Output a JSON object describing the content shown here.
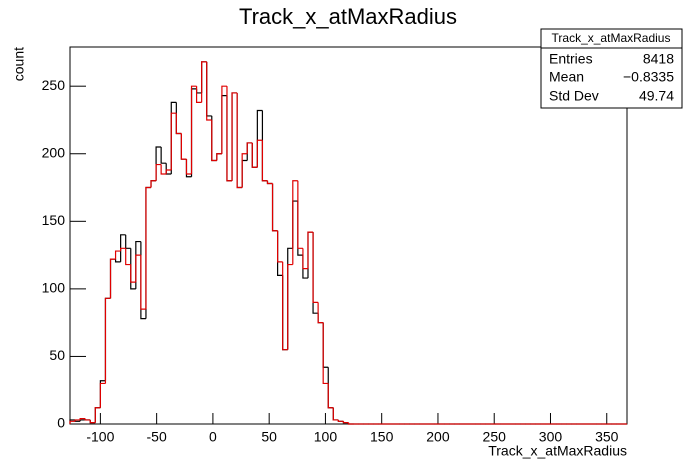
{
  "chart_data": {
    "type": "histogram",
    "title": "Track_x_atMaxRadius",
    "x_label": "Track_x_atMaxRadius",
    "y_label": "count",
    "bins": [
      -127,
      -122.5,
      -118,
      -113.5,
      -109,
      -104.5,
      -100,
      -95.5,
      -91,
      -86.5,
      -82,
      -77.5,
      -73,
      -68.5,
      -64,
      -59.5,
      -55,
      -50.5,
      -46,
      -41.5,
      -37,
      -32.5,
      -28,
      -23.5,
      -19,
      -14.5,
      -10,
      -5.5,
      -1,
      3.5,
      8,
      12.5,
      17,
      21.5,
      26,
      30.5,
      35,
      39.5,
      44,
      48.5,
      53,
      57.5,
      62,
      66.5,
      71,
      75.5,
      80,
      84.5,
      89,
      93.5,
      98,
      102.5,
      107,
      111.5,
      116,
      120.5,
      125,
      129.5,
      134,
      138.5,
      143,
      147.5,
      152,
      156.5,
      161,
      165.5,
      170,
      174.5,
      179,
      183.5,
      188,
      192.5,
      197,
      201.5,
      206,
      210.5,
      215,
      219.5,
      224,
      228.5,
      233,
      237.5,
      242,
      246.5,
      251,
      255.5,
      260,
      264.5,
      269,
      273.5,
      278,
      282.5,
      287,
      291.5,
      296,
      300.5,
      305,
      309.5,
      314,
      318.5,
      323,
      327.5,
      332,
      336.5,
      341,
      345.5,
      350,
      354.5,
      359,
      363.5,
      368
    ],
    "series": [
      {
        "color": "#000000",
        "values": [
          3,
          2,
          3,
          3,
          1,
          12,
          32,
          93,
          122,
          120,
          140,
          130,
          100,
          135,
          78,
          175,
          180,
          205,
          193,
          185,
          238,
          215,
          196,
          183,
          248,
          245,
          268,
          228,
          195,
          200,
          243,
          180,
          245,
          175,
          195,
          208,
          190,
          232,
          180,
          178,
          143,
          110,
          55,
          130,
          165,
          125,
          108,
          142,
          82,
          75,
          42,
          12,
          3,
          2,
          1,
          0,
          0,
          0,
          0,
          0,
          0,
          0,
          0,
          0,
          0,
          0,
          0,
          0,
          0,
          0,
          0,
          0,
          0,
          0,
          0,
          0,
          0,
          0,
          0,
          0,
          0,
          0,
          0,
          0,
          0,
          0,
          0,
          0,
          0,
          0,
          0,
          0,
          0,
          0,
          0,
          0,
          0,
          0,
          0,
          0,
          0,
          0,
          0,
          0,
          0,
          0,
          0,
          0,
          0,
          0
        ]
      },
      {
        "color": "#e00000",
        "values": [
          2,
          3,
          4,
          3,
          1,
          12,
          30,
          93,
          122,
          128,
          130,
          118,
          105,
          125,
          85,
          175,
          180,
          192,
          185,
          188,
          230,
          215,
          196,
          185,
          250,
          238,
          268,
          225,
          195,
          200,
          250,
          180,
          245,
          175,
          200,
          208,
          190,
          210,
          180,
          178,
          143,
          120,
          55,
          118,
          180,
          130,
          115,
          142,
          90,
          75,
          30,
          12,
          3,
          2,
          1,
          0,
          0,
          0,
          0,
          0,
          0,
          0,
          0,
          0,
          0,
          0,
          0,
          0,
          0,
          0,
          0,
          0,
          0,
          0,
          0,
          0,
          0,
          0,
          0,
          0,
          0,
          0,
          0,
          0,
          0,
          0,
          0,
          0,
          0,
          0,
          0,
          0,
          0,
          0,
          0,
          0,
          0,
          0,
          0,
          0,
          0,
          0,
          0,
          0,
          0,
          0,
          0,
          0,
          0,
          0
        ]
      }
    ],
    "xlim": [
      -127,
      368
    ],
    "ylim": [
      0,
      279
    ],
    "xticks": [
      -100,
      -50,
      0,
      50,
      100,
      150,
      200,
      250,
      300,
      350
    ],
    "yticks": [
      0,
      50,
      100,
      150,
      200,
      250
    ],
    "stats": {
      "title": "Track_x_atMaxRadius",
      "rows": [
        [
          "Entries",
          "8418"
        ],
        [
          "Mean",
          "−0.8335"
        ],
        [
          "Std Dev",
          "49.74"
        ]
      ]
    }
  }
}
